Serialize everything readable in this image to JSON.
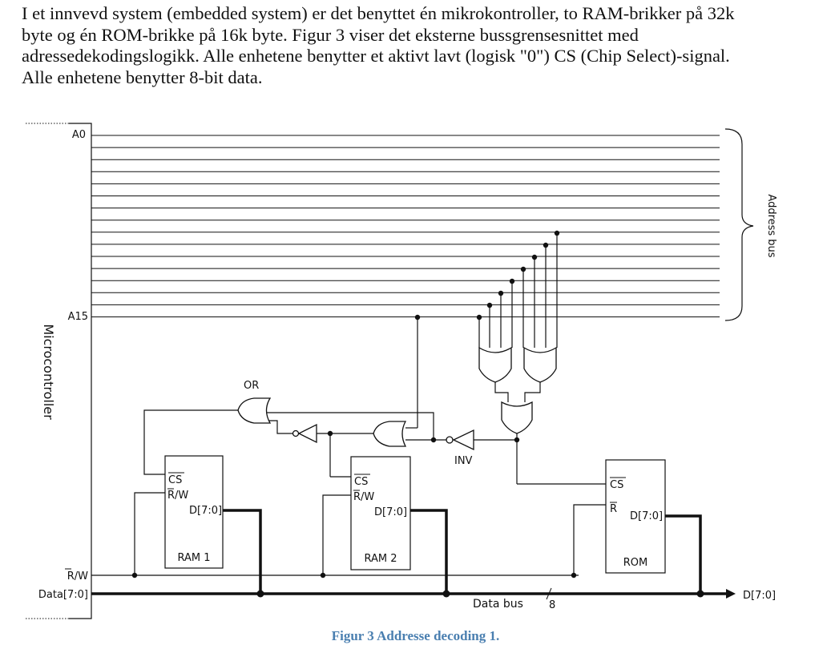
{
  "intro_lines": [
    "I et innvevd system (embedded system) er det benyttet én mikrokontroller, to RAM-brikker på 32k",
    "byte og én ROM-brikke på 16k byte. Figur 3 viser det eksterne bussgrensesnittet med",
    "adressedekodingslogikk. Alle enhetene benytter et aktivt lavt (logisk \"0\") CS (Chip Select)-signal.",
    "Alle enhetene benytter 8-bit data."
  ],
  "diagram": {
    "microcontroller": "Microcontroller",
    "address_bus": "Address bus",
    "a0": "A0",
    "a15": "A15",
    "or_label": "OR",
    "inv_label": "INV",
    "rw_label": "R/W",
    "data_label": "Data[7:0]",
    "data_bus_label": "Data bus",
    "bus_width": "8",
    "d_out_label": "D[7:0]",
    "ram1": {
      "cs": "CS",
      "rw": "R/W",
      "data": "D[7:0]",
      "name": "RAM 1"
    },
    "ram2": {
      "cs": "CS",
      "rw": "R/W",
      "data": "D[7:0]",
      "name": "RAM 2"
    },
    "rom": {
      "cs": "CS",
      "r": "R",
      "data": "D[7:0]",
      "name": "ROM"
    }
  },
  "caption": "Figur 3 Addresse decoding 1."
}
